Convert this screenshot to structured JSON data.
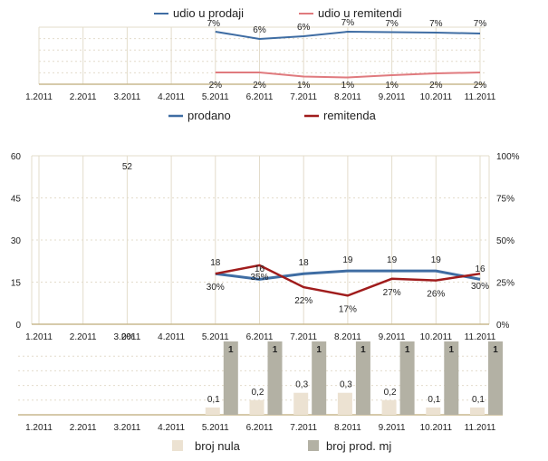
{
  "colors": {
    "blue": "#3f6da3",
    "pink": "#e07a7e",
    "darkred": "#a01c1c",
    "beige": "#ece2d2",
    "gray": "#b3b1a4",
    "grid": "#e3dccb"
  },
  "chart_data": [
    {
      "type": "line",
      "categories": [
        "1.2011",
        "2.2011",
        "3.2011",
        "4.2011",
        "5.2011",
        "6.2011",
        "7.2011",
        "8.2011",
        "9.2011",
        "10.2011",
        "11.2011"
      ],
      "series": [
        {
          "name": "udio u prodaji",
          "values": [
            null,
            null,
            null,
            null,
            7,
            6,
            6,
            7,
            7,
            7,
            7
          ],
          "labels": [
            null,
            null,
            null,
            null,
            "7%",
            "6%",
            "6%",
            "7%",
            "7%",
            "7%",
            "7%"
          ]
        },
        {
          "name": "udio u remitendi",
          "values": [
            null,
            null,
            null,
            null,
            2,
            2,
            1,
            1,
            1,
            2,
            2
          ],
          "labels": [
            null,
            null,
            null,
            null,
            "2%",
            "2%",
            "1%",
            "1%",
            "1%",
            "2%",
            "2%"
          ]
        }
      ],
      "legend": "top"
    },
    {
      "type": "line",
      "categories": [
        "1.2011",
        "2.2011",
        "3.2011",
        "4.2011",
        "5.2011",
        "6.2011",
        "7.2011",
        "8.2011",
        "9.2011",
        "10.2011",
        "11.2011"
      ],
      "series": [
        {
          "name": "prodano",
          "axis": "left",
          "values": [
            null,
            null,
            52,
            null,
            18,
            16,
            18,
            19,
            19,
            19,
            16
          ],
          "labels": [
            "",
            "",
            "52",
            "",
            "18",
            "16",
            "18",
            "19",
            "19",
            "19",
            "16"
          ]
        },
        {
          "name": "remitenda",
          "axis": "right",
          "values": [
            null,
            null,
            null,
            null,
            30,
            35,
            22,
            17,
            27,
            26,
            30
          ],
          "labels": [
            "",
            "",
            "",
            "",
            "30%",
            "35%",
            "22%",
            "17%",
            "27%",
            "26%",
            "30%"
          ]
        }
      ],
      "left_ticks": [
        "0",
        "15",
        "30",
        "45",
        "60"
      ],
      "right_ticks": [
        "0%",
        "25%",
        "50%",
        "75%",
        "100%"
      ],
      "ylim_left": [
        0,
        60
      ],
      "ylim_right": [
        0,
        100
      ],
      "cat_labels": [
        "1.2011",
        "2.2011",
        "3.2011",
        "4.2011",
        "5.2011",
        "6.2011",
        "7.2011",
        "8.2011",
        "9.2011",
        "10.2011",
        "11.2011"
      ],
      "extra_label": "0%",
      "legend": "top"
    },
    {
      "type": "bar",
      "categories": [
        "1.2011",
        "2.2011",
        "3.2011",
        "4.2011",
        "5.2011",
        "6.2011",
        "7.2011",
        "8.2011",
        "9.2011",
        "10.2011",
        "11.2011"
      ],
      "series": [
        {
          "name": "broj nula",
          "values": [
            null,
            null,
            null,
            null,
            0.1,
            0.2,
            0.3,
            0.3,
            0.2,
            0.1,
            0.1
          ],
          "labels": [
            "",
            "",
            "",
            "",
            "0,1",
            "0,2",
            "0,3",
            "0,3",
            "0,2",
            "0,1",
            "0,1"
          ]
        },
        {
          "name": "broj prod. mj",
          "values": [
            null,
            null,
            null,
            null,
            1,
            1,
            1,
            1,
            1,
            1,
            1
          ],
          "labels": [
            "",
            "",
            "",
            "",
            "1",
            "1",
            "1",
            "1",
            "1",
            "1",
            "1"
          ]
        }
      ],
      "ylim": [
        0,
        1
      ],
      "legend": "bottom"
    }
  ]
}
